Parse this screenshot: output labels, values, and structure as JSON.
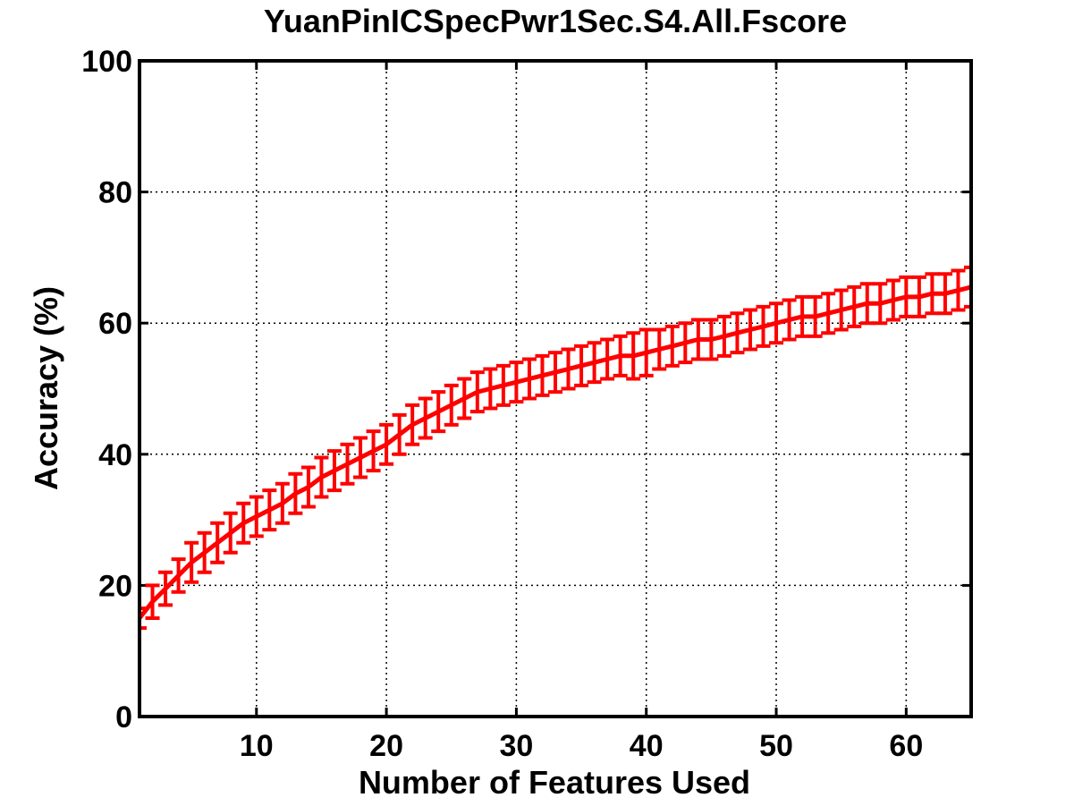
{
  "chart_data": {
    "type": "line",
    "title": "YuanPinICSpecPwr1Sec.S4.All.Fscore",
    "xlabel": "Number of Features Used",
    "ylabel": "Accuracy (%)",
    "xlim": [
      1,
      65
    ],
    "ylim": [
      0,
      100
    ],
    "xticks": [
      10,
      20,
      30,
      40,
      50,
      60
    ],
    "yticks": [
      0,
      20,
      40,
      60,
      80,
      100
    ],
    "xtick_labels": [
      "10",
      "20",
      "30",
      "40",
      "50",
      "60"
    ],
    "ytick_labels": [
      "0",
      "20",
      "40",
      "60",
      "80",
      "100"
    ],
    "grid": true,
    "error_bars": true,
    "series": [
      {
        "color": "#ff0000",
        "x": [
          1,
          2,
          3,
          4,
          5,
          6,
          7,
          8,
          9,
          10,
          11,
          12,
          13,
          14,
          15,
          16,
          17,
          18,
          19,
          20,
          21,
          22,
          23,
          24,
          25,
          26,
          27,
          28,
          29,
          30,
          31,
          32,
          33,
          34,
          35,
          36,
          37,
          38,
          39,
          40,
          41,
          42,
          43,
          44,
          45,
          46,
          47,
          48,
          49,
          50,
          51,
          52,
          53,
          54,
          55,
          56,
          57,
          58,
          59,
          60,
          61,
          62,
          63,
          64,
          65
        ],
        "y": [
          15,
          17.5,
          19.5,
          21.5,
          23.5,
          25,
          26.5,
          28,
          29.5,
          30.5,
          31.5,
          32.5,
          34,
          35,
          36.5,
          37.5,
          38.5,
          39.5,
          40.5,
          41.5,
          43,
          44.5,
          45.5,
          46.5,
          47.5,
          48.5,
          49.5,
          50,
          50.5,
          51,
          51.5,
          52,
          52.5,
          53,
          53.5,
          54,
          54.5,
          55,
          55,
          55.5,
          56,
          56.5,
          57,
          57.5,
          57.5,
          58,
          58.5,
          59,
          59.5,
          60,
          60.5,
          61,
          61,
          61.5,
          62,
          62.5,
          63,
          63,
          63.5,
          64,
          64,
          64.5,
          64.5,
          65,
          65.5
        ],
        "err": [
          1.5,
          2.5,
          2.5,
          2.5,
          3,
          3,
          3,
          3,
          3,
          3,
          3,
          3,
          3,
          3,
          3,
          3,
          3,
          3,
          3,
          3,
          3,
          3,
          3,
          3,
          3,
          3,
          3,
          3,
          3,
          3,
          3,
          3,
          3,
          3,
          3,
          3,
          3,
          3,
          3.5,
          3.5,
          3,
          3,
          3,
          3,
          3,
          3,
          3,
          3,
          3,
          3,
          3,
          3,
          3,
          3,
          3,
          3,
          3,
          3,
          3,
          3,
          3,
          3,
          3,
          3,
          3
        ]
      }
    ]
  }
}
